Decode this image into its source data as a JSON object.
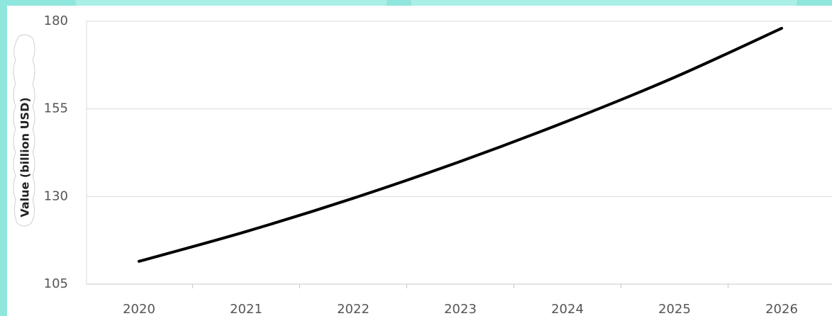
{
  "chart_data": {
    "type": "line",
    "title": "",
    "xlabel": "",
    "ylabel": "Value (billion USD)",
    "x": [
      "2020",
      "2021",
      "2022",
      "2023",
      "2024",
      "2025",
      "2026"
    ],
    "series": [
      {
        "values": [
          111.5,
          120,
          129.5,
          140,
          151.5,
          164,
          178
        ]
      }
    ],
    "ylim": [
      105,
      180
    ],
    "yticks": [
      "105",
      "130",
      "155",
      "180"
    ],
    "grid": true,
    "legend": "none",
    "colors": {
      "line": "#000000",
      "grid": "#d9d9d9",
      "frame": "#8FE6DC"
    }
  }
}
